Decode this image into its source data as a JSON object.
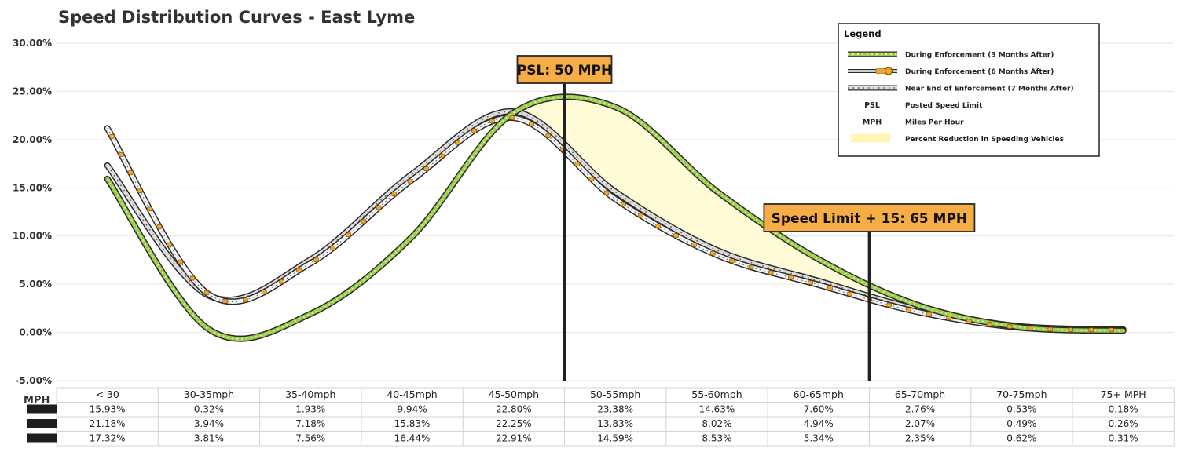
{
  "chart_data": {
    "type": "line",
    "title": "Speed Distribution Curves - East Lyme",
    "xlabel": "",
    "ylabel": "",
    "ylim": [
      -0.05,
      0.3
    ],
    "y_ticks": [
      "30.00%",
      "25.00%",
      "20.00%",
      "15.00%",
      "10.00%",
      "5.00%",
      "0.00%",
      "-5.00%"
    ],
    "grid": true,
    "legend_position": "top-right",
    "categories": [
      "< 30",
      "30-35mph",
      "35-40mph",
      "40-45mph",
      "45-50mph",
      "50-55mph",
      "55-60mph",
      "60-65mph",
      "65-70mph",
      "70-75mph",
      "75+ MPH"
    ],
    "table_row_header": "MPH",
    "series": [
      {
        "name": "During Enforcement (3 Months After)",
        "values": [
          0.1593,
          0.0032,
          0.0193,
          0.0994,
          0.228,
          0.2338,
          0.1463,
          0.076,
          0.0276,
          0.0053,
          0.0018
        ],
        "labels": [
          "15.93%",
          "0.32%",
          "1.93%",
          "9.94%",
          "22.80%",
          "23.38%",
          "14.63%",
          "7.60%",
          "2.76%",
          "0.53%",
          "0.18%"
        ],
        "color": "#8dc63f",
        "style": "green-dotted"
      },
      {
        "name": "During Enforcement (6 Months After)",
        "values": [
          0.2118,
          0.0394,
          0.0718,
          0.1583,
          0.2225,
          0.1383,
          0.0802,
          0.0494,
          0.0207,
          0.0049,
          0.0026
        ],
        "labels": [
          "21.18%",
          "3.94%",
          "7.18%",
          "15.83%",
          "22.25%",
          "13.83%",
          "8.02%",
          "4.94%",
          "2.07%",
          "0.49%",
          "0.26%"
        ],
        "color": "#f5a623",
        "style": "orange-markers"
      },
      {
        "name": "Near End of Enforcement (7 Months After)",
        "values": [
          0.1732,
          0.0381,
          0.0756,
          0.1644,
          0.2291,
          0.1459,
          0.0853,
          0.0534,
          0.0235,
          0.0062,
          0.0031
        ],
        "labels": [
          "17.32%",
          "3.81%",
          "7.56%",
          "16.44%",
          "22.91%",
          "14.59%",
          "8.53%",
          "5.34%",
          "2.35%",
          "0.62%",
          "0.31%"
        ],
        "color": "#bbbbbb",
        "style": "grey-dots"
      }
    ],
    "callouts": [
      {
        "label": "PSL: 50 MPH",
        "speed": 50
      },
      {
        "label": "Speed Limit + 15: 65 MPH",
        "speed": 65
      }
    ],
    "legend": {
      "title": "Legend",
      "items": [
        {
          "abbr": "",
          "text": "During Enforcement (3 Months After)",
          "symbol": "green-dotted"
        },
        {
          "abbr": "",
          "text": "During Enforcement (6 Months After)",
          "symbol": "orange-markers"
        },
        {
          "abbr": "",
          "text": "Near End of Enforcement (7 Months After)",
          "symbol": "grey-dots"
        },
        {
          "abbr": "PSL",
          "text": "Posted Speed Limit",
          "symbol": "none"
        },
        {
          "abbr": "MPH",
          "text": "Miles Per Hour",
          "symbol": "none"
        },
        {
          "abbr": "",
          "text": "Percent Reduction in Speeding Vehicles",
          "symbol": "yellow-fill"
        }
      ]
    },
    "colors": {
      "reduction_fill": "#fffbd6",
      "callout_fill": "#f7ad45",
      "callout_border": "#2a2a2a",
      "grid": "#e6e6e6"
    }
  }
}
